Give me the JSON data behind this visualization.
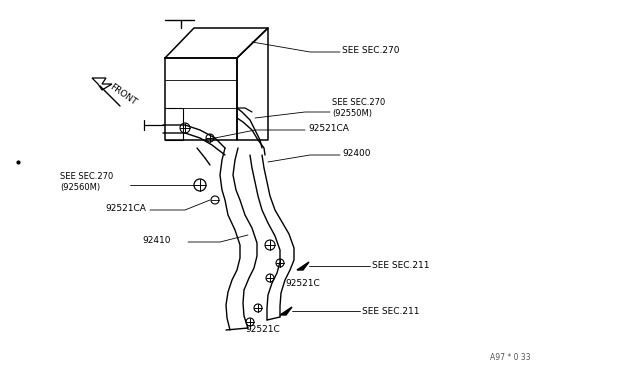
{
  "background_color": "#ffffff",
  "line_color": "#000000",
  "fig_width": 6.4,
  "fig_height": 3.72,
  "dpi": 100,
  "watermark": "A97 * 0 33",
  "labels": {
    "see_sec270_top": "SEE SEC.270",
    "see_sec270_mid": "SEE SEC.270\n(92550M)",
    "see_sec270_left": "SEE SEC.270\n(92560M)",
    "part_92521CA_top": "92521CA",
    "part_92400": "92400",
    "part_92521CA_mid": "92521CA",
    "part_92410": "92410",
    "part_92521C_top": "92521C",
    "see_sec211_top": "SEE SEC.211",
    "part_92521C_bot": "92521C",
    "see_sec211_bot": "SEE SEC.211",
    "front": "FRONT"
  }
}
